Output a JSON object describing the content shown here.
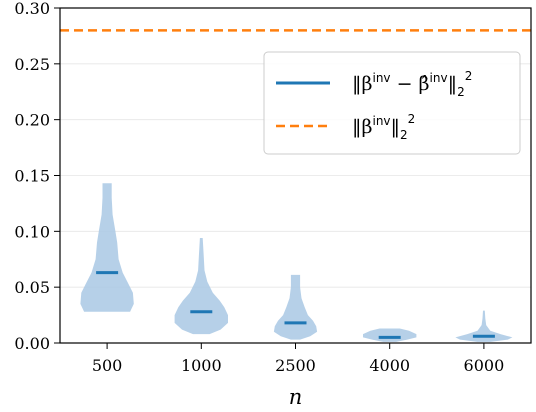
{
  "chart_data": {
    "type": "violin",
    "categories": [
      "500",
      "1000",
      "2500",
      "4000",
      "6000"
    ],
    "xlabel": "n",
    "ylabel": "",
    "ylim": [
      0,
      0.3
    ],
    "yticks": [
      "0.00",
      "0.05",
      "0.10",
      "0.15",
      "0.20",
      "0.25",
      "0.30"
    ],
    "grid": true,
    "legend_position": "top-right",
    "legend": [
      {
        "series": "estimation_error",
        "label_main": "‖β",
        "label_sup1": "inv",
        "label_mid": " − β̂",
        "label_sup2": "inv",
        "label_end": "‖",
        "label_sub": "2",
        "label_sup3": "2"
      },
      {
        "series": "true_norm",
        "label_main": "‖β",
        "label_sup1": "inv",
        "label_mid": "",
        "label_sup2": "",
        "label_end": "‖",
        "label_sub": "2",
        "label_sup3": "2"
      }
    ],
    "series": [
      {
        "key": "estimation_error",
        "color": "#1f77b4",
        "fill": "#a9c8e4",
        "violins": [
          {
            "category": "500",
            "min": 0.028,
            "max": 0.143,
            "median": 0.063,
            "profile": [
              [
                0.028,
                0.5
              ],
              [
                0.035,
                0.58
              ],
              [
                0.045,
                0.56
              ],
              [
                0.055,
                0.44
              ],
              [
                0.063,
                0.34
              ],
              [
                0.075,
                0.25
              ],
              [
                0.09,
                0.22
              ],
              [
                0.1,
                0.18
              ],
              [
                0.115,
                0.12
              ],
              [
                0.13,
                0.1
              ],
              [
                0.143,
                0.1
              ]
            ]
          },
          {
            "category": "1000",
            "min": 0.008,
            "max": 0.094,
            "median": 0.028,
            "profile": [
              [
                0.008,
                0.18
              ],
              [
                0.012,
                0.42
              ],
              [
                0.018,
                0.58
              ],
              [
                0.025,
                0.58
              ],
              [
                0.032,
                0.5
              ],
              [
                0.038,
                0.4
              ],
              [
                0.045,
                0.25
              ],
              [
                0.055,
                0.13
              ],
              [
                0.065,
                0.07
              ],
              [
                0.08,
                0.05
              ],
              [
                0.094,
                0.03
              ]
            ]
          },
          {
            "category": "2500",
            "min": 0.003,
            "max": 0.061,
            "median": 0.018,
            "profile": [
              [
                0.003,
                0.1
              ],
              [
                0.006,
                0.32
              ],
              [
                0.01,
                0.47
              ],
              [
                0.015,
                0.45
              ],
              [
                0.02,
                0.38
              ],
              [
                0.025,
                0.27
              ],
              [
                0.032,
                0.2
              ],
              [
                0.04,
                0.13
              ],
              [
                0.05,
                0.1
              ],
              [
                0.061,
                0.1
              ]
            ]
          },
          {
            "category": "4000",
            "min": 0.001,
            "max": 0.013,
            "median": 0.005,
            "profile": [
              [
                0.001,
                0.14
              ],
              [
                0.003,
                0.38
              ],
              [
                0.005,
                0.58
              ],
              [
                0.008,
                0.58
              ],
              [
                0.011,
                0.42
              ],
              [
                0.013,
                0.22
              ]
            ]
          },
          {
            "category": "6000",
            "min": 0.001,
            "max": 0.029,
            "median": 0.006,
            "profile": [
              [
                0.001,
                0.14
              ],
              [
                0.003,
                0.52
              ],
              [
                0.005,
                0.62
              ],
              [
                0.008,
                0.36
              ],
              [
                0.011,
                0.14
              ],
              [
                0.016,
                0.05
              ],
              [
                0.022,
                0.03
              ],
              [
                0.029,
                0.02
              ]
            ]
          }
        ]
      },
      {
        "key": "true_norm",
        "color": "#ff7f0e",
        "style": "dashed",
        "value": 0.28
      }
    ]
  }
}
